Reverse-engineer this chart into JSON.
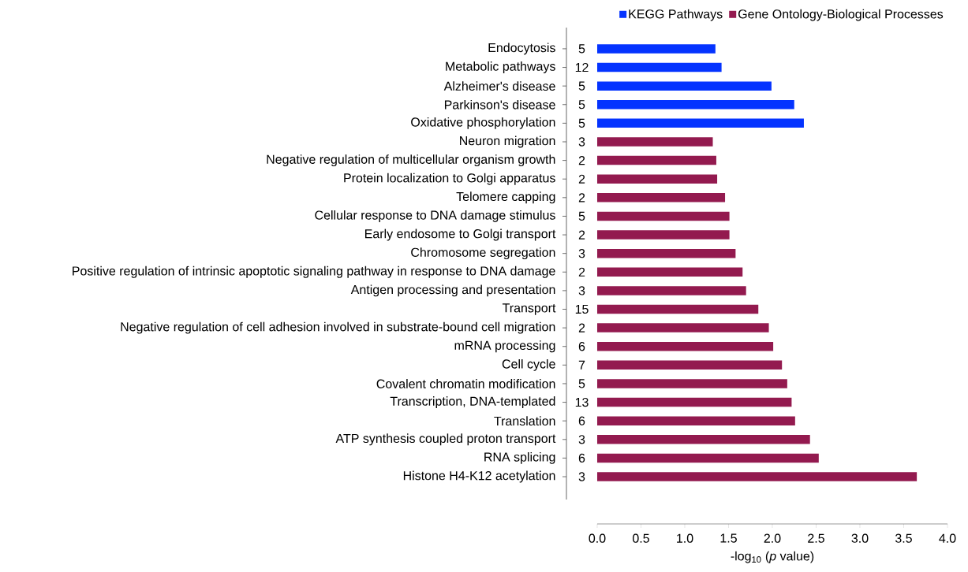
{
  "chart_data": {
    "type": "bar",
    "orientation": "horizontal",
    "xlabel": "-log$_{10}$ (*p* value)",
    "legend": "top right",
    "categories": [
      "Endocytosis",
      "Metabolic pathways",
      "Alzheimer's disease",
      "Parkinson's disease",
      "Oxidative phosphorylation",
      "Neuron migration",
      "Negative regulation of multicellular organism growth",
      "Protein localization to Golgi apparatus",
      "Telomere capping",
      "Cellular response to DNA damage stimulus",
      "Early endosome to Golgi transport",
      "Chromosome segregation",
      "Positive regulation of intrinsic apoptotic signaling pathway in response to DNA damage",
      "Antigen processing and presentation",
      "Transport",
      "Negative regulation of cell adhesion involved in substrate-bound cell migration",
      "mRNA processing",
      "Cell cycle",
      "Covalent chromatin modification",
      "Transcription, DNA-templated",
      "Translation",
      "ATP synthesis coupled proton transport",
      "RNA splicing",
      "Histone H4-K12 acetylation"
    ],
    "series": [
      {
        "name": "KEGG Pathways",
        "color": "#0433ff",
        "values": [
          1.35,
          1.42,
          1.99,
          2.25,
          2.36,
          null,
          null,
          null,
          null,
          null,
          null,
          null,
          null,
          null,
          null,
          null,
          null,
          null,
          null,
          null,
          null,
          null,
          null,
          null
        ]
      },
      {
        "name": "Gene Ontology-Biological Processes",
        "color": "#931a4f",
        "values": [
          null,
          null,
          null,
          null,
          null,
          1.32,
          1.36,
          1.37,
          1.46,
          1.51,
          1.51,
          1.58,
          1.66,
          1.7,
          1.84,
          1.96,
          2.01,
          2.11,
          2.17,
          2.22,
          2.26,
          2.43,
          2.53,
          3.65
        ]
      }
    ],
    "xlim": [
      0,
      4
    ],
    "xticks": [
      {
        "value": 0,
        "label": "0.0"
      },
      {
        "value": 0.5,
        "label": "0.5"
      },
      {
        "value": 1,
        "label": "1.0"
      },
      {
        "value": 1.5,
        "label": "1.5"
      },
      {
        "value": 2,
        "label": "2.0"
      },
      {
        "value": 2.5,
        "label": "2.5"
      },
      {
        "value": 3,
        "label": "3.0"
      },
      {
        "value": 3.5,
        "label": "3.5"
      },
      {
        "value": 4,
        "label": "4.0"
      }
    ],
    "annotations": [
      "5",
      "12",
      "5",
      "5",
      "5",
      "3",
      "2",
      "2",
      "2",
      "5",
      "2",
      "3",
      "2",
      "3",
      "15",
      "2",
      "6",
      "7",
      "5",
      "13",
      "6",
      "3",
      "6",
      "3"
    ]
  }
}
